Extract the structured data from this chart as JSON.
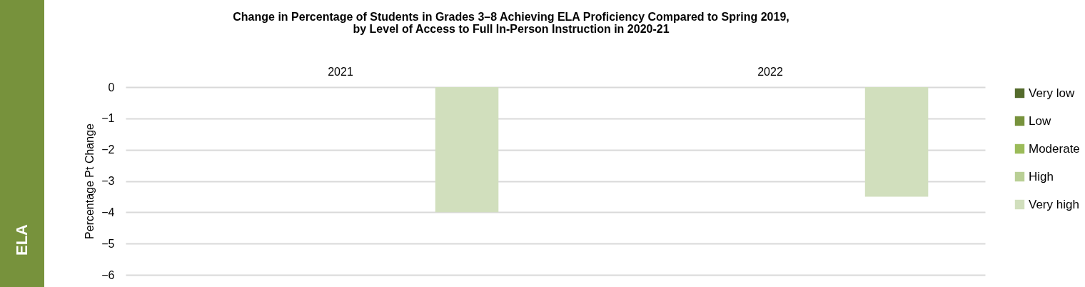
{
  "chart_data": {
    "type": "bar",
    "title": [
      "Change in Percentage of Students in Grades 3–8 Achieving ELA Proficiency Compared to Spring 2019,",
      "by Level of Access to Full In-Person Instruction in 2020-21"
    ],
    "ylabel": "Percentage Pt Change",
    "annotations": [
      "ELA"
    ],
    "categories": [
      "2021",
      "2022"
    ],
    "series": [
      {
        "name": "Very low",
        "color": "#546b2c",
        "values": [
          null,
          null
        ]
      },
      {
        "name": "Low",
        "color": "#77923c",
        "values": [
          null,
          null
        ]
      },
      {
        "name": "Moderate",
        "color": "#9bbb59",
        "values": [
          null,
          null
        ]
      },
      {
        "name": "High",
        "color": "#b9cf95",
        "values": [
          null,
          null
        ]
      },
      {
        "name": "Very high",
        "color": "#d1dfbd",
        "values": [
          -4.0,
          -3.5
        ]
      }
    ],
    "ylim": [
      -6,
      0
    ],
    "yticks": [
      0,
      -1,
      -2,
      -3,
      -4,
      -5,
      -6
    ],
    "grid": "y",
    "legend": "right"
  }
}
